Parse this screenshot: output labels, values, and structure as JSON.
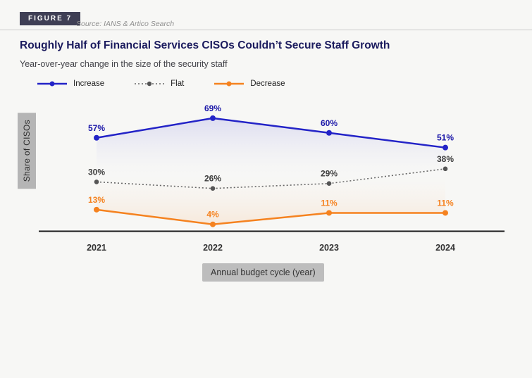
{
  "figure": {
    "badge": "Figure 7",
    "source": "Source: IANS & Artico Search"
  },
  "title": "Roughly Half of Financial Services CISOs Couldn’t Secure Staff Growth",
  "subtitle": "Year-over-year change in the size of the security staff",
  "legend": [
    {
      "label": "Increase",
      "color": "#2323c7",
      "marker_color": "#2323c7",
      "style": "solid"
    },
    {
      "label": "Flat",
      "color": "#666666",
      "marker_color": "#555555",
      "style": "dotted"
    },
    {
      "label": "Decrease",
      "color": "#f5821f",
      "marker_color": "#f5821f",
      "style": "solid"
    }
  ],
  "axis": {
    "y_label": "Share of CISOs",
    "x_label": "Annual budget cycle (year)"
  },
  "colors": {
    "accent_navy": "#1b1b5e",
    "increase_label": "#1a16a8",
    "flat_label": "#3d3d3d",
    "decrease_label": "#f5821f",
    "axis_line": "#1a1a1a",
    "tick_label": "#333333"
  },
  "chart_data": {
    "type": "line",
    "title": "Roughly Half of Financial Services CISOs Couldn’t Secure Staff Growth",
    "subtitle": "Year-over-year change in the size of the security staff",
    "xlabel": "Annual budget cycle (year)",
    "ylabel": "Share of CISOs",
    "x": [
      "2021",
      "2022",
      "2023",
      "2024"
    ],
    "unit": "%",
    "ylim": [
      0,
      80
    ],
    "grid": false,
    "legend_position": "top",
    "series": [
      {
        "name": "Increase",
        "color": "#2323c7",
        "style": "solid",
        "values": [
          57,
          69,
          60,
          51
        ]
      },
      {
        "name": "Flat",
        "color": "#666666",
        "style": "dotted",
        "values": [
          30,
          26,
          29,
          38
        ]
      },
      {
        "name": "Decrease",
        "color": "#f5821f",
        "style": "solid",
        "values": [
          13,
          4,
          11,
          11
        ]
      }
    ]
  }
}
